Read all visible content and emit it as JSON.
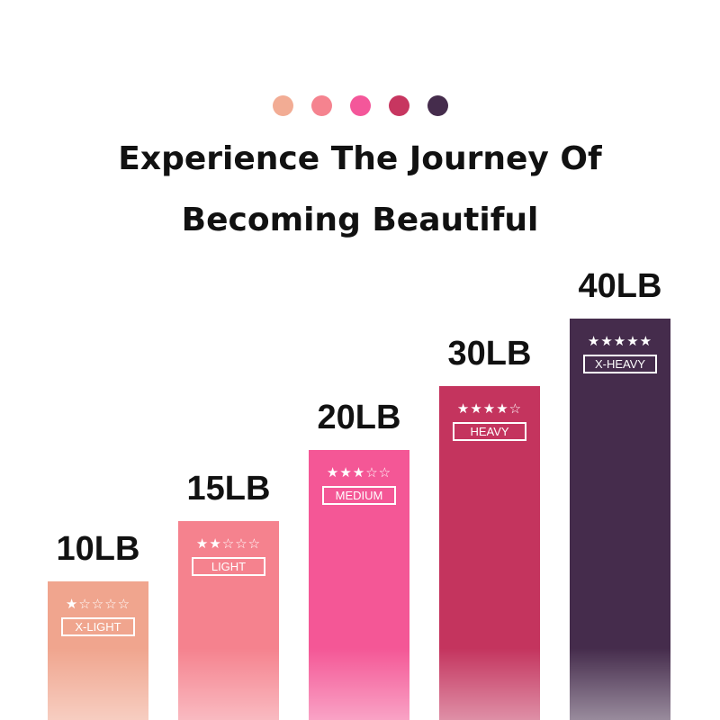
{
  "dot_colors": [
    "#F2AC94",
    "#F5838F",
    "#F4579A",
    "#C73660",
    "#452C4C"
  ],
  "title_line1": "Experience The Journey Of",
  "title_line2": "Becoming Beautiful",
  "bands": [
    {
      "weight": "10LB",
      "stars": "★☆☆☆☆",
      "rating": 1,
      "level": "X-LIGHT",
      "color": "#F0A58E"
    },
    {
      "weight": "15LB",
      "stars": "★★☆☆☆",
      "rating": 2,
      "level": "LIGHT",
      "color": "#F5828E"
    },
    {
      "weight": "20LB",
      "stars": "★★★☆☆",
      "rating": 3,
      "level": "MEDIUM",
      "color": "#F45796"
    },
    {
      "weight": "30LB",
      "stars": "★★★★☆",
      "rating": 4,
      "level": "HEAVY",
      "color": "#C4345E"
    },
    {
      "weight": "40LB",
      "stars": "★★★★★",
      "rating": 5,
      "level": "X-HEAVY",
      "color": "#452C4C"
    }
  ]
}
